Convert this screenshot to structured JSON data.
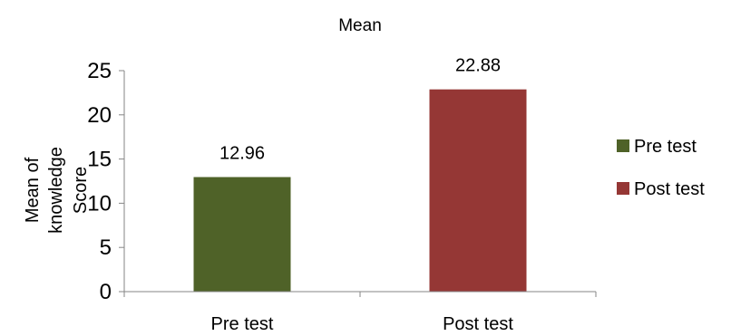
{
  "chart_data": {
    "type": "bar",
    "title": "Mean",
    "categories": [
      "Pre test",
      "Post test"
    ],
    "series": [
      {
        "name": "Pre test",
        "values": [
          12.96,
          null
        ],
        "color": "#4f6228"
      },
      {
        "name": "Post test",
        "values": [
          null,
          22.88
        ],
        "color": "#953735"
      }
    ],
    "data_labels": [
      "12.96",
      "22.88"
    ],
    "ylabel_lines": [
      "Mean  of",
      "knowledge",
      "Score"
    ],
    "ylim": [
      0,
      25
    ],
    "yticks": [
      0,
      5,
      10,
      15,
      20,
      25
    ],
    "grid": false,
    "legend": "right"
  }
}
